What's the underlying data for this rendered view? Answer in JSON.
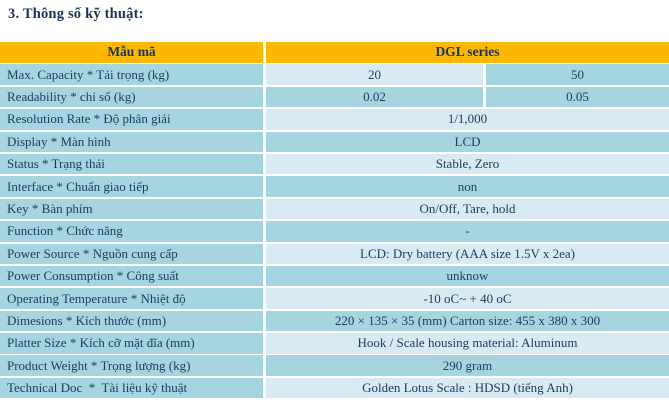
{
  "page": {
    "title": "3. Thông số kỹ thuật:"
  },
  "colors": {
    "header_bg": "#fcb800",
    "row_light": "#d8ebf3",
    "row_medium": "#a6d5e2",
    "body_text": "#1f3a60",
    "header_text": "#17365d",
    "title_text": "#1b3258"
  },
  "table": {
    "header": {
      "col1": "Mẫu mã",
      "col2": "DGL series"
    },
    "split_rows": [
      {
        "label": "Max. Capacity * Tải trọng (kg)",
        "value1": "20",
        "value2": "50"
      },
      {
        "label": "Readability * chỉ số (kg)",
        "value1": "0.02",
        "value2": "0.05"
      }
    ],
    "rows": [
      {
        "label": "Resolution Rate * Độ phân giải",
        "value": "1/1,000"
      },
      {
        "label": "Display * Màn hình",
        "value": "LCD"
      },
      {
        "label": "Status * Trạng thái",
        "value": "Stable, Zero"
      },
      {
        "label": "Interface * Chuẩn giao tiếp",
        "value": "non"
      },
      {
        "label": "Key * Bàn phím",
        "value": "On/Off, Tare, hold"
      },
      {
        "label": "Function * Chức năng",
        "value": "-"
      },
      {
        "label": "Power Source * Nguồn cung cấp",
        "value": "LCD: Dry battery (AAA size 1.5V x 2ea)"
      },
      {
        "label": "Power Consumption * Công suất",
        "value": "unknow"
      },
      {
        "label": "Operating Temperature * Nhiệt độ",
        "value": "-10 oC~ + 40 oC"
      },
      {
        "label": "Dimesions * Kích thước (mm)",
        "value": "220 × 135 × 35 (mm) Carton size: 455 x 380 x 300"
      },
      {
        "label": "Platter Size * Kích cỡ mặt đĩa (mm)",
        "value": "Hook / Scale housing material: Aluminum"
      },
      {
        "label": "Product Weight * Trọng lượng (kg)",
        "value": "290 gram"
      },
      {
        "label": "Technical Doc  *  Tài liệu kỹ thuật",
        "value": "Golden Lotus Scale : HDSD (tiếng Anh)"
      }
    ]
  }
}
